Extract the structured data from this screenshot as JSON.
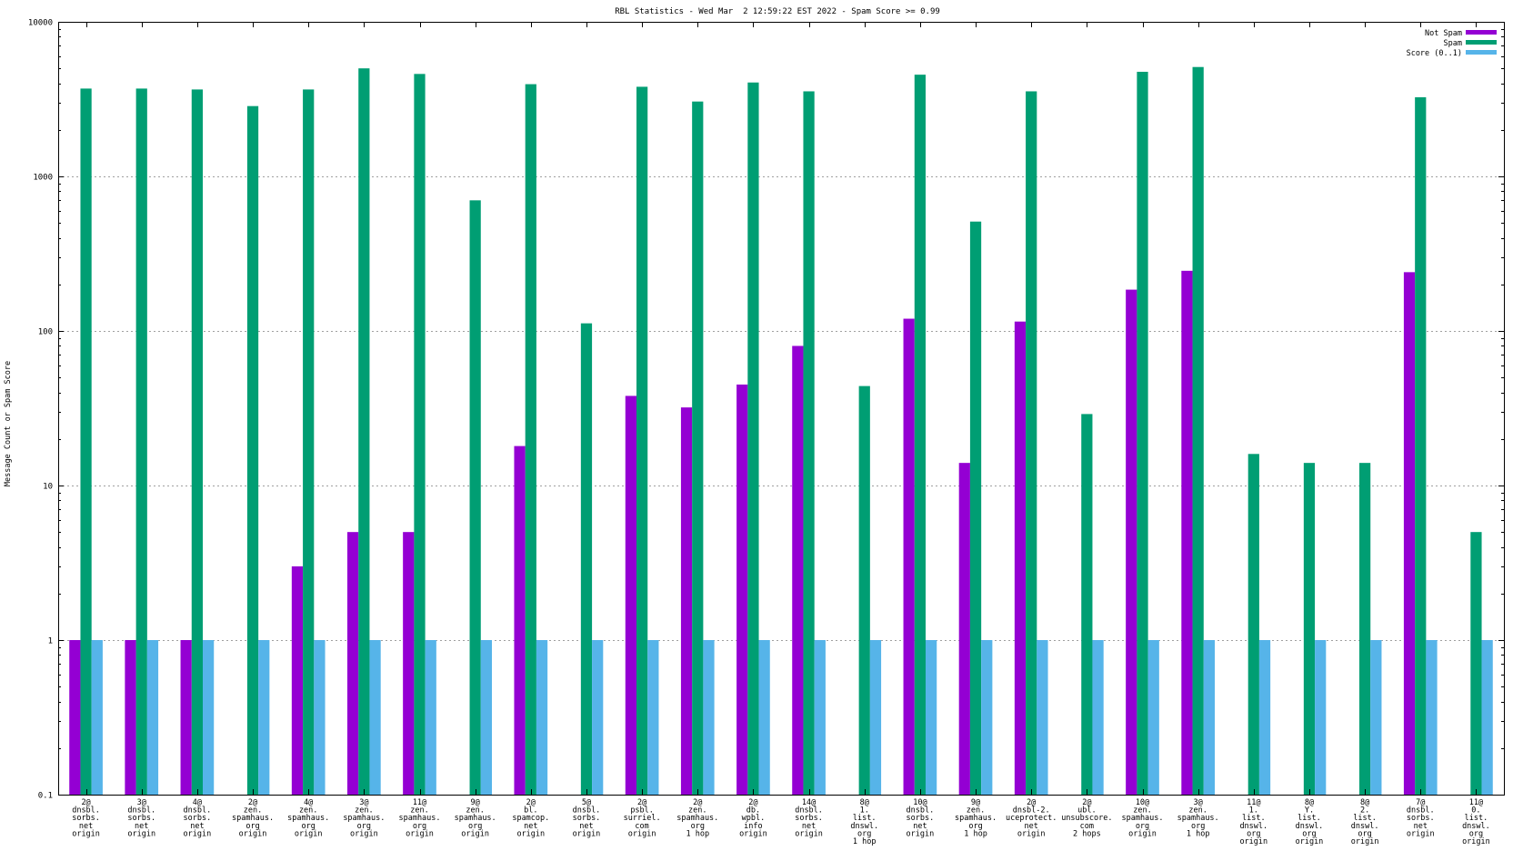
{
  "chart_data": {
    "type": "bar",
    "title": "RBL Statistics - Wed Mar  2 12:59:22 EST 2022 - Spam Score >= 0.99",
    "xlabel": "",
    "ylabel": "Message Count or Spam Score",
    "yscale": "log",
    "ylim": [
      0.1,
      10000
    ],
    "y_ticks": [
      "0.1",
      "1",
      "10",
      "100",
      "1000",
      "10000"
    ],
    "grid": true,
    "legend_position": "top-right",
    "categories": [
      [
        "2@",
        "dnsbl.",
        "sorbs.",
        "net",
        "origin"
      ],
      [
        "3@",
        "dnsbl.",
        "sorbs.",
        "net",
        "origin"
      ],
      [
        "4@",
        "dnsbl.",
        "sorbs.",
        "net",
        "origin"
      ],
      [
        "2@",
        "zen.",
        "spamhaus.",
        "org",
        "origin"
      ],
      [
        "4@",
        "zen.",
        "spamhaus.",
        "org",
        "origin"
      ],
      [
        "3@",
        "zen.",
        "spamhaus.",
        "org",
        "origin"
      ],
      [
        "11@",
        "zen.",
        "spamhaus.",
        "org",
        "origin"
      ],
      [
        "9@",
        "zen.",
        "spamhaus.",
        "org",
        "origin"
      ],
      [
        "2@",
        "bl.",
        "spamcop.",
        "net",
        "origin"
      ],
      [
        "5@",
        "dnsbl.",
        "sorbs.",
        "net",
        "origin"
      ],
      [
        "2@",
        "psbl.",
        "surriel.",
        "com",
        "origin"
      ],
      [
        "2@",
        "zen.",
        "spamhaus.",
        "org",
        "1 hop"
      ],
      [
        "2@",
        "db.",
        "wpbl.",
        "info",
        "origin"
      ],
      [
        "14@",
        "dnsbl.",
        "sorbs.",
        "net",
        "origin"
      ],
      [
        "8@",
        "1.",
        "list.",
        "dnswl.",
        "org",
        "1 hop"
      ],
      [
        "10@",
        "dnsbl.",
        "sorbs.",
        "net",
        "origin"
      ],
      [
        "9@",
        "zen.",
        "spamhaus.",
        "org",
        "1 hop"
      ],
      [
        "2@",
        "dnsbl-2.",
        "uceprotect.",
        "net",
        "origin"
      ],
      [
        "2@",
        "ubl.",
        "unsubscore.",
        "com",
        "2 hops"
      ],
      [
        "10@",
        "zen.",
        "spamhaus.",
        "org",
        "origin"
      ],
      [
        "3@",
        "zen.",
        "spamhaus.",
        "org",
        "1 hop"
      ],
      [
        "11@",
        "1.",
        "list.",
        "dnswl.",
        "org",
        "origin"
      ],
      [
        "8@",
        "Y.",
        "list.",
        "dnswl.",
        "org",
        "origin"
      ],
      [
        "8@",
        "2.",
        "list.",
        "dnswl.",
        "org",
        "origin"
      ],
      [
        "7@",
        "dnsbl.",
        "sorbs.",
        "net",
        "origin"
      ],
      [
        "11@",
        "0.",
        "list.",
        "dnswl.",
        "org",
        "origin"
      ]
    ],
    "series": [
      {
        "name": "Not Spam",
        "color": "#9400d3",
        "values": [
          1,
          1,
          1,
          null,
          3,
          5,
          5,
          null,
          18,
          null,
          38,
          32,
          45,
          80,
          null,
          120,
          14,
          115,
          null,
          185,
          245,
          null,
          null,
          null,
          240,
          null
        ]
      },
      {
        "name": "Spam",
        "color": "#009e73",
        "values": [
          3700,
          3700,
          3650,
          2850,
          3650,
          5000,
          4600,
          700,
          3950,
          112,
          3800,
          3050,
          4050,
          3550,
          44,
          4550,
          510,
          3550,
          29,
          4750,
          5100,
          16,
          14,
          14,
          3250,
          5
        ]
      },
      {
        "name": "Score (0..1)",
        "color": "#56b4e9",
        "values": [
          1,
          1,
          1,
          1,
          1,
          1,
          1,
          1,
          1,
          1,
          1,
          1,
          1,
          1,
          1,
          1,
          1,
          1,
          1,
          1,
          1,
          1,
          1,
          1,
          1,
          1
        ]
      }
    ]
  }
}
